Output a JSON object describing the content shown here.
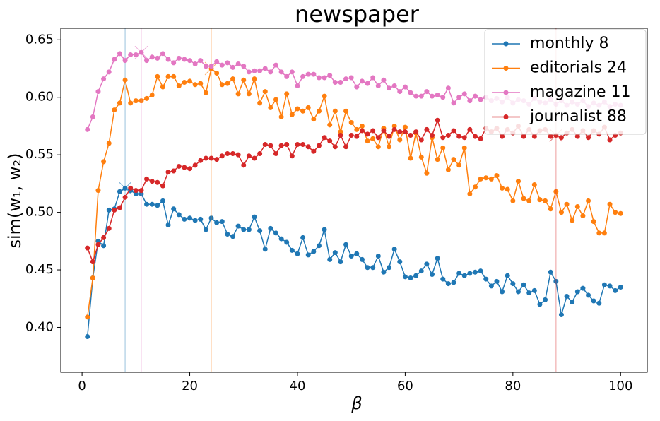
{
  "chart_data": {
    "type": "line",
    "title": "newspaper",
    "xlabel": "β",
    "ylabel": "sim(w₁, w₂)",
    "x": [
      1,
      2,
      3,
      4,
      5,
      6,
      7,
      8,
      9,
      10,
      11,
      12,
      13,
      14,
      15,
      16,
      17,
      18,
      19,
      20,
      21,
      22,
      23,
      24,
      25,
      26,
      27,
      28,
      29,
      30,
      31,
      32,
      33,
      34,
      35,
      36,
      37,
      38,
      39,
      40,
      41,
      42,
      43,
      44,
      45,
      46,
      47,
      48,
      49,
      50,
      51,
      52,
      53,
      54,
      55,
      56,
      57,
      58,
      59,
      60,
      61,
      62,
      63,
      64,
      65,
      66,
      67,
      68,
      69,
      70,
      71,
      72,
      73,
      74,
      75,
      76,
      77,
      78,
      79,
      80,
      81,
      82,
      83,
      84,
      85,
      86,
      87,
      88,
      89,
      90,
      91,
      92,
      93,
      94,
      95,
      96,
      97,
      98,
      99,
      100
    ],
    "xlim": [
      -3.95,
      104.95
    ],
    "xticks": [
      0,
      20,
      40,
      60,
      80,
      100
    ],
    "ylim": [
      0.361,
      0.66
    ],
    "yticks": [
      {
        "value": 0.4,
        "label": "0.40"
      },
      {
        "value": 0.45,
        "label": "0.45"
      },
      {
        "value": 0.5,
        "label": "0.50"
      },
      {
        "value": 0.55,
        "label": "0.55"
      },
      {
        "value": 0.6,
        "label": "0.60"
      },
      {
        "value": 0.65,
        "label": "0.65"
      }
    ],
    "legend": "upper right",
    "series": [
      {
        "name": "monthly 8",
        "color": "#1f77b4",
        "vline": 8,
        "values": [
          0.392,
          0.443,
          0.475,
          0.471,
          0.502,
          0.503,
          0.518,
          0.521,
          0.519,
          0.516,
          0.516,
          0.507,
          0.507,
          0.506,
          0.51,
          0.489,
          0.503,
          0.498,
          0.494,
          0.495,
          0.493,
          0.494,
          0.485,
          0.495,
          0.491,
          0.492,
          0.481,
          0.479,
          0.488,
          0.485,
          0.485,
          0.496,
          0.484,
          0.468,
          0.486,
          0.482,
          0.477,
          0.474,
          0.467,
          0.464,
          0.478,
          0.463,
          0.466,
          0.471,
          0.485,
          0.459,
          0.465,
          0.457,
          0.472,
          0.462,
          0.464,
          0.459,
          0.452,
          0.452,
          0.462,
          0.448,
          0.452,
          0.468,
          0.457,
          0.444,
          0.443,
          0.445,
          0.449,
          0.455,
          0.446,
          0.46,
          0.442,
          0.438,
          0.439,
          0.447,
          0.445,
          0.447,
          0.448,
          0.449,
          0.442,
          0.436,
          0.44,
          0.431,
          0.445,
          0.438,
          0.431,
          0.437,
          0.43,
          0.432,
          0.42,
          0.424,
          0.448,
          0.44,
          0.411,
          0.427,
          0.422,
          0.431,
          0.434,
          0.428,
          0.423,
          0.421,
          0.437,
          0.436,
          0.432,
          0.435
        ]
      },
      {
        "name": "editorials 24",
        "color": "#ff7f0e",
        "vline": 24,
        "values": [
          0.409,
          0.443,
          0.519,
          0.544,
          0.56,
          0.589,
          0.595,
          0.615,
          0.595,
          0.597,
          0.597,
          0.599,
          0.602,
          0.618,
          0.609,
          0.618,
          0.618,
          0.61,
          0.613,
          0.614,
          0.611,
          0.612,
          0.604,
          0.625,
          0.621,
          0.611,
          0.612,
          0.616,
          0.603,
          0.615,
          0.603,
          0.616,
          0.595,
          0.605,
          0.591,
          0.598,
          0.583,
          0.603,
          0.585,
          0.59,
          0.588,
          0.591,
          0.581,
          0.588,
          0.601,
          0.576,
          0.588,
          0.57,
          0.588,
          0.578,
          0.572,
          0.575,
          0.562,
          0.564,
          0.557,
          0.573,
          0.557,
          0.575,
          0.563,
          0.574,
          0.547,
          0.569,
          0.548,
          0.534,
          0.565,
          0.546,
          0.556,
          0.537,
          0.546,
          0.541,
          0.556,
          0.516,
          0.522,
          0.529,
          0.53,
          0.529,
          0.532,
          0.521,
          0.52,
          0.51,
          0.527,
          0.512,
          0.51,
          0.524,
          0.511,
          0.51,
          0.503,
          0.518,
          0.5,
          0.507,
          0.493,
          0.505,
          0.497,
          0.51,
          0.492,
          0.482,
          0.482,
          0.507,
          0.5,
          0.499
        ]
      },
      {
        "name": "magazine 11",
        "color": "#e377c2",
        "vline": 11,
        "values": [
          0.572,
          0.583,
          0.605,
          0.616,
          0.622,
          0.633,
          0.638,
          0.632,
          0.637,
          0.637,
          0.639,
          0.632,
          0.635,
          0.634,
          0.638,
          0.633,
          0.63,
          0.634,
          0.633,
          0.632,
          0.629,
          0.632,
          0.627,
          0.627,
          0.631,
          0.628,
          0.63,
          0.626,
          0.629,
          0.627,
          0.622,
          0.623,
          0.623,
          0.625,
          0.622,
          0.628,
          0.622,
          0.618,
          0.622,
          0.61,
          0.618,
          0.62,
          0.62,
          0.617,
          0.617,
          0.619,
          0.613,
          0.613,
          0.616,
          0.617,
          0.609,
          0.614,
          0.612,
          0.617,
          0.61,
          0.615,
          0.608,
          0.61,
          0.605,
          0.609,
          0.604,
          0.601,
          0.601,
          0.605,
          0.601,
          0.602,
          0.6,
          0.608,
          0.595,
          0.6,
          0.603,
          0.597,
          0.601,
          0.598,
          0.6,
          0.597,
          0.599,
          0.596,
          0.6,
          0.595,
          0.598,
          0.597,
          0.594,
          0.599,
          0.596,
          0.595,
          0.598,
          0.594,
          0.597,
          0.593,
          0.596,
          0.594,
          0.597,
          0.592,
          0.595,
          0.593,
          0.596,
          0.592,
          0.594,
          0.593
        ]
      },
      {
        "name": "journalist 88",
        "color": "#d62728",
        "vline": 88,
        "values": [
          0.469,
          0.457,
          0.472,
          0.478,
          0.486,
          0.502,
          0.504,
          0.513,
          0.521,
          0.519,
          0.519,
          0.529,
          0.527,
          0.526,
          0.523,
          0.535,
          0.536,
          0.54,
          0.539,
          0.538,
          0.541,
          0.545,
          0.547,
          0.547,
          0.546,
          0.549,
          0.551,
          0.551,
          0.55,
          0.541,
          0.549,
          0.547,
          0.551,
          0.559,
          0.558,
          0.551,
          0.558,
          0.559,
          0.549,
          0.559,
          0.559,
          0.557,
          0.553,
          0.558,
          0.565,
          0.562,
          0.557,
          0.567,
          0.557,
          0.567,
          0.566,
          0.571,
          0.568,
          0.571,
          0.565,
          0.571,
          0.566,
          0.572,
          0.57,
          0.57,
          0.567,
          0.57,
          0.563,
          0.572,
          0.567,
          0.58,
          0.565,
          0.567,
          0.571,
          0.566,
          0.565,
          0.572,
          0.566,
          0.564,
          0.573,
          0.57,
          0.573,
          0.566,
          0.572,
          0.569,
          0.575,
          0.566,
          0.572,
          0.566,
          0.571,
          0.572,
          0.566,
          0.567,
          0.565,
          0.569,
          0.572,
          0.566,
          0.571,
          0.565,
          0.571,
          0.568,
          0.574,
          0.563,
          0.567,
          0.569
        ]
      }
    ]
  }
}
